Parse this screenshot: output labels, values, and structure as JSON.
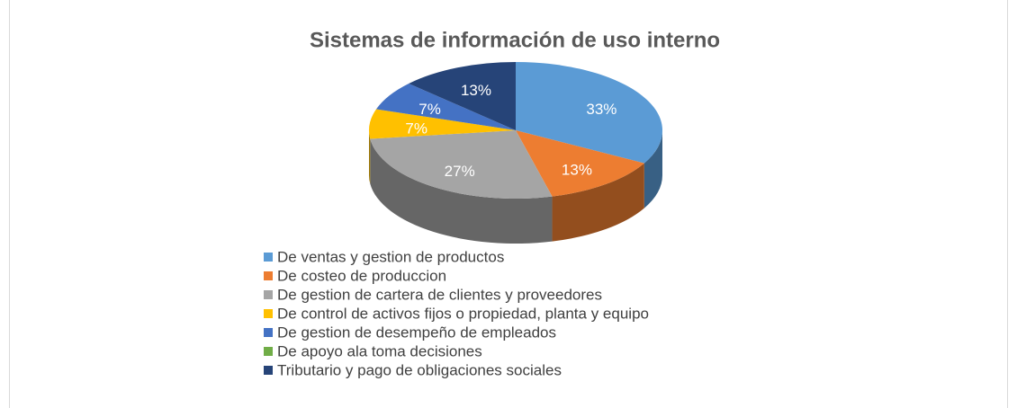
{
  "chart_data": {
    "type": "pie",
    "title": "Sistemas de información de uso interno",
    "categories": [
      "De ventas y gestion de productos",
      "De costeo de produccion",
      "De gestion de cartera de clientes y proveedores",
      "De control de activos fijos o propiedad, planta y equipo",
      "De gestion de desempeño de empleados",
      "De apoyo ala toma decisiones",
      "Tributario y pago de obligaciones sociales"
    ],
    "values": [
      33,
      13,
      27,
      7,
      7,
      0,
      13
    ],
    "value_labels": [
      "33%",
      "13%",
      "27%",
      "7%",
      "7%",
      null,
      "13%"
    ],
    "colors": [
      "#5b9bd5",
      "#ed7d31",
      "#a5a5a5",
      "#ffc000",
      "#4472c4",
      "#70ad47",
      "#264478"
    ],
    "legend": "bottom"
  }
}
